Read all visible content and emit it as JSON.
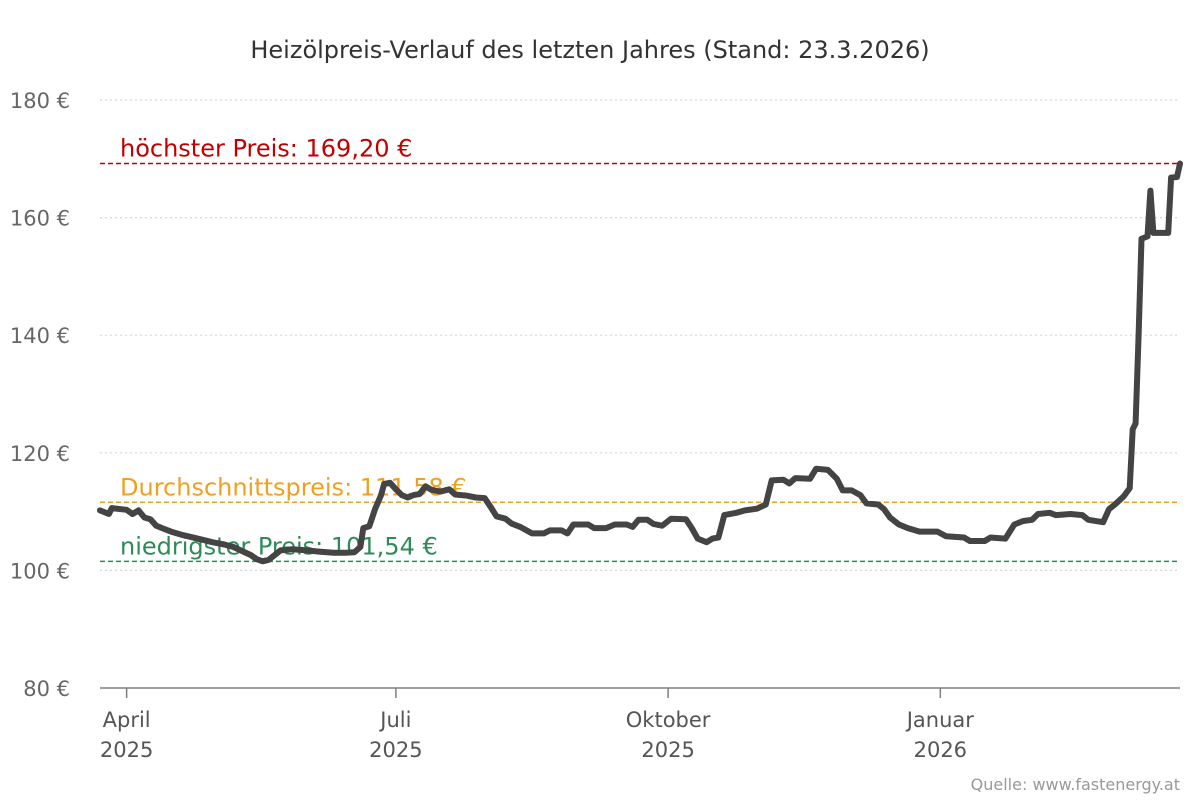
{
  "chart_data": {
    "type": "line",
    "title": "Heizölpreis-Verlauf des letzten Jahres (Stand: 23.3.2026)",
    "source": "Quelle: www.fastenergy.at",
    "y_ticks": [
      "180 €",
      "160 €",
      "140 €",
      "120 €",
      "100 €",
      "80 €"
    ],
    "y_tick_values": [
      180,
      160,
      140,
      120,
      100,
      80
    ],
    "ylim": [
      80,
      180
    ],
    "x_start": "2025-03-23",
    "x_end": "2026-03-23",
    "x_ticks": [
      {
        "date": "2025-04-01",
        "month": "April",
        "year": "2025"
      },
      {
        "date": "2025-07-01",
        "month": "Juli",
        "year": "2025"
      },
      {
        "date": "2025-10-01",
        "month": "Oktober",
        "year": "2025"
      },
      {
        "date": "2026-01-01",
        "month": "Januar",
        "year": "2026"
      }
    ],
    "grid": true,
    "reference_lines": [
      {
        "key": "max",
        "label": "höchster Preis: 169,20 €",
        "value": 169.2,
        "color": "#c00000"
      },
      {
        "key": "avg",
        "label": "Durchschnittspreis: 111,58 €",
        "value": 111.58,
        "color": "#f0a020"
      },
      {
        "key": "min",
        "label": "niedrigster Preis: 101,54 €",
        "value": 101.54,
        "color": "#2e8b57"
      }
    ],
    "series": [
      {
        "color": "#444444",
        "points": [
          [
            "2025-03-23",
            110.2
          ],
          [
            "2025-03-26",
            109.6
          ],
          [
            "2025-03-27",
            110.6
          ],
          [
            "2025-04-01",
            110.3
          ],
          [
            "2025-04-03",
            109.6
          ],
          [
            "2025-04-05",
            110.2
          ],
          [
            "2025-04-07",
            109.0
          ],
          [
            "2025-04-09",
            108.7
          ],
          [
            "2025-04-11",
            107.6
          ],
          [
            "2025-04-13",
            107.2
          ],
          [
            "2025-04-16",
            106.6
          ],
          [
            "2025-04-20",
            106.0
          ],
          [
            "2025-04-25",
            105.4
          ],
          [
            "2025-04-30",
            104.8
          ],
          [
            "2025-05-04",
            104.4
          ],
          [
            "2025-05-07",
            104.0
          ],
          [
            "2025-05-10",
            103.3
          ],
          [
            "2025-05-13",
            102.6
          ],
          [
            "2025-05-15",
            101.9
          ],
          [
            "2025-05-17",
            101.54
          ],
          [
            "2025-05-19",
            101.8
          ],
          [
            "2025-05-21",
            102.6
          ],
          [
            "2025-05-23",
            103.4
          ],
          [
            "2025-05-27",
            103.6
          ],
          [
            "2025-06-01",
            103.4
          ],
          [
            "2025-06-05",
            103.2
          ],
          [
            "2025-06-10",
            103.0
          ],
          [
            "2025-06-14",
            103.0
          ],
          [
            "2025-06-17",
            103.1
          ],
          [
            "2025-06-19",
            104.0
          ],
          [
            "2025-06-20",
            107.2
          ],
          [
            "2025-06-22",
            107.5
          ],
          [
            "2025-06-24",
            110.5
          ],
          [
            "2025-06-26",
            112.8
          ],
          [
            "2025-06-27",
            114.7
          ],
          [
            "2025-06-29",
            114.9
          ],
          [
            "2025-07-01",
            113.8
          ],
          [
            "2025-07-03",
            112.8
          ],
          [
            "2025-07-05",
            112.4
          ],
          [
            "2025-07-07",
            112.8
          ],
          [
            "2025-07-09",
            113.0
          ],
          [
            "2025-07-11",
            114.3
          ],
          [
            "2025-07-13",
            113.7
          ],
          [
            "2025-07-16",
            113.4
          ],
          [
            "2025-07-19",
            113.8
          ],
          [
            "2025-07-21",
            112.9
          ],
          [
            "2025-07-25",
            112.7
          ],
          [
            "2025-07-28",
            112.4
          ],
          [
            "2025-07-31",
            112.3
          ],
          [
            "2025-08-02",
            110.8
          ],
          [
            "2025-08-04",
            109.2
          ],
          [
            "2025-08-07",
            108.8
          ],
          [
            "2025-08-09",
            108.0
          ],
          [
            "2025-08-12",
            107.4
          ],
          [
            "2025-08-16",
            106.3
          ],
          [
            "2025-08-20",
            106.3
          ],
          [
            "2025-08-22",
            106.8
          ],
          [
            "2025-08-26",
            106.8
          ],
          [
            "2025-08-28",
            106.3
          ],
          [
            "2025-08-30",
            107.8
          ],
          [
            "2025-09-04",
            107.8
          ],
          [
            "2025-09-06",
            107.2
          ],
          [
            "2025-09-10",
            107.2
          ],
          [
            "2025-09-13",
            107.8
          ],
          [
            "2025-09-17",
            107.8
          ],
          [
            "2025-09-19",
            107.4
          ],
          [
            "2025-09-21",
            108.6
          ],
          [
            "2025-09-24",
            108.6
          ],
          [
            "2025-09-26",
            107.9
          ],
          [
            "2025-09-29",
            107.6
          ],
          [
            "2025-10-02",
            108.8
          ],
          [
            "2025-10-07",
            108.7
          ],
          [
            "2025-10-09",
            107.2
          ],
          [
            "2025-10-11",
            105.4
          ],
          [
            "2025-10-14",
            104.8
          ],
          [
            "2025-10-16",
            105.4
          ],
          [
            "2025-10-18",
            105.6
          ],
          [
            "2025-10-20",
            109.4
          ],
          [
            "2025-10-24",
            109.8
          ],
          [
            "2025-10-27",
            110.2
          ],
          [
            "2025-10-31",
            110.5
          ],
          [
            "2025-11-03",
            111.2
          ],
          [
            "2025-11-05",
            115.3
          ],
          [
            "2025-11-09",
            115.4
          ],
          [
            "2025-11-11",
            114.8
          ],
          [
            "2025-11-13",
            115.7
          ],
          [
            "2025-11-18",
            115.6
          ],
          [
            "2025-11-20",
            117.3
          ],
          [
            "2025-11-24",
            117.1
          ],
          [
            "2025-11-27",
            115.6
          ],
          [
            "2025-11-29",
            113.6
          ],
          [
            "2025-12-02",
            113.6
          ],
          [
            "2025-12-05",
            112.8
          ],
          [
            "2025-12-07",
            111.4
          ],
          [
            "2025-12-11",
            111.2
          ],
          [
            "2025-12-13",
            110.4
          ],
          [
            "2025-12-15",
            109.0
          ],
          [
            "2025-12-18",
            107.8
          ],
          [
            "2025-12-21",
            107.2
          ],
          [
            "2025-12-25",
            106.6
          ],
          [
            "2025-12-31",
            106.6
          ],
          [
            "2026-01-03",
            105.8
          ],
          [
            "2026-01-09",
            105.6
          ],
          [
            "2026-01-11",
            105.0
          ],
          [
            "2026-01-16",
            105.0
          ],
          [
            "2026-01-18",
            105.6
          ],
          [
            "2026-01-23",
            105.4
          ],
          [
            "2026-01-26",
            107.8
          ],
          [
            "2026-01-29",
            108.4
          ],
          [
            "2026-02-01",
            108.6
          ],
          [
            "2026-02-03",
            109.6
          ],
          [
            "2026-02-07",
            109.8
          ],
          [
            "2026-02-09",
            109.4
          ],
          [
            "2026-02-14",
            109.6
          ],
          [
            "2026-02-18",
            109.4
          ],
          [
            "2026-02-20",
            108.6
          ],
          [
            "2026-02-25",
            108.2
          ],
          [
            "2026-02-27",
            110.4
          ],
          [
            "2026-03-01",
            111.2
          ],
          [
            "2026-03-04",
            112.6
          ],
          [
            "2026-03-06",
            114.0
          ],
          [
            "2026-03-07",
            124.0
          ],
          [
            "2026-03-08",
            125.0
          ],
          [
            "2026-03-09",
            140.0
          ],
          [
            "2026-03-10",
            156.4
          ],
          [
            "2026-03-12",
            156.8
          ],
          [
            "2026-03-13",
            164.6
          ],
          [
            "2026-03-14",
            157.4
          ],
          [
            "2026-03-16",
            157.4
          ],
          [
            "2026-03-19",
            157.4
          ],
          [
            "2026-03-20",
            166.8
          ],
          [
            "2026-03-22",
            166.9
          ],
          [
            "2026-03-23",
            169.2
          ]
        ]
      }
    ]
  }
}
